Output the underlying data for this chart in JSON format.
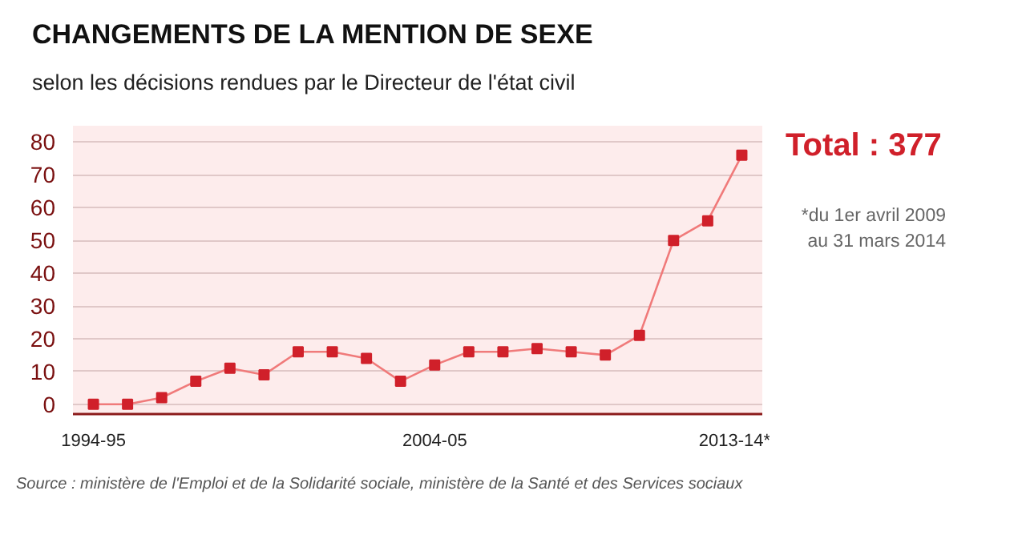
{
  "chart_data": {
    "type": "line",
    "title": "CHANGEMENTS DE LA MENTION DE SEXE",
    "subtitle": "selon les décisions rendues par le Directeur de l'état civil",
    "categories": [
      "1994-95",
      null,
      null,
      null,
      null,
      null,
      null,
      null,
      null,
      null,
      "2004-05",
      null,
      null,
      null,
      null,
      null,
      null,
      null,
      null,
      "2013-14*"
    ],
    "series": [
      {
        "color": "#d0202a",
        "values": [
          0,
          0,
          2,
          7,
          11,
          9,
          16,
          16,
          14,
          7,
          12,
          16,
          16,
          17,
          16,
          15,
          21,
          50,
          56,
          76
        ]
      }
    ],
    "ylim": [
      -3,
      85
    ],
    "yticks": [
      0,
      10,
      20,
      30,
      40,
      50,
      60,
      70,
      80
    ],
    "grid": "y",
    "marker": "square",
    "line_style": "solid",
    "annotations": [
      "Total : 377",
      "*du 1er avril 2009 au 31 mars 2014",
      "Source : ministère de l'Emploi et de la Solidarité sociale, ministère de la Santé et des Services sociaux"
    ]
  }
}
